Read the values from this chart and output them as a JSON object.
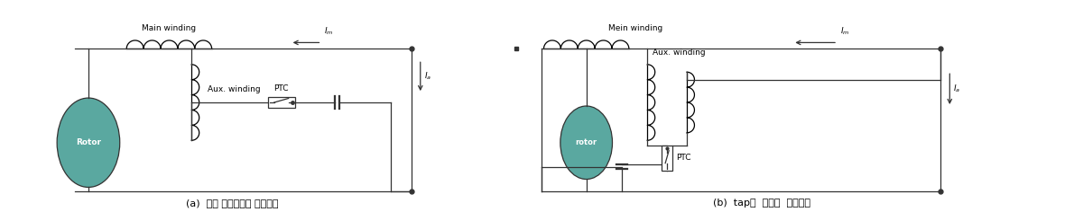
{
  "fig_width": 11.9,
  "fig_height": 2.36,
  "dpi": 100,
  "bg_color": "#ffffff",
  "teal_color": "#5aa8a0",
  "line_color": "#333333",
  "caption_a": "(a)  기존 단상유도기 권선구조",
  "caption_b": "(b)  tap을  이용한  권선구조",
  "label_main_winding_a": "Main winding",
  "label_main_winding_b": "Mein winding",
  "label_aux_winding": "Aux. winding",
  "label_rotor_a": "Rotor",
  "label_rotor_b": "rotor",
  "label_ptc": "PTC",
  "label_Im": "$I_m$",
  "label_Ia": "$I_a$"
}
